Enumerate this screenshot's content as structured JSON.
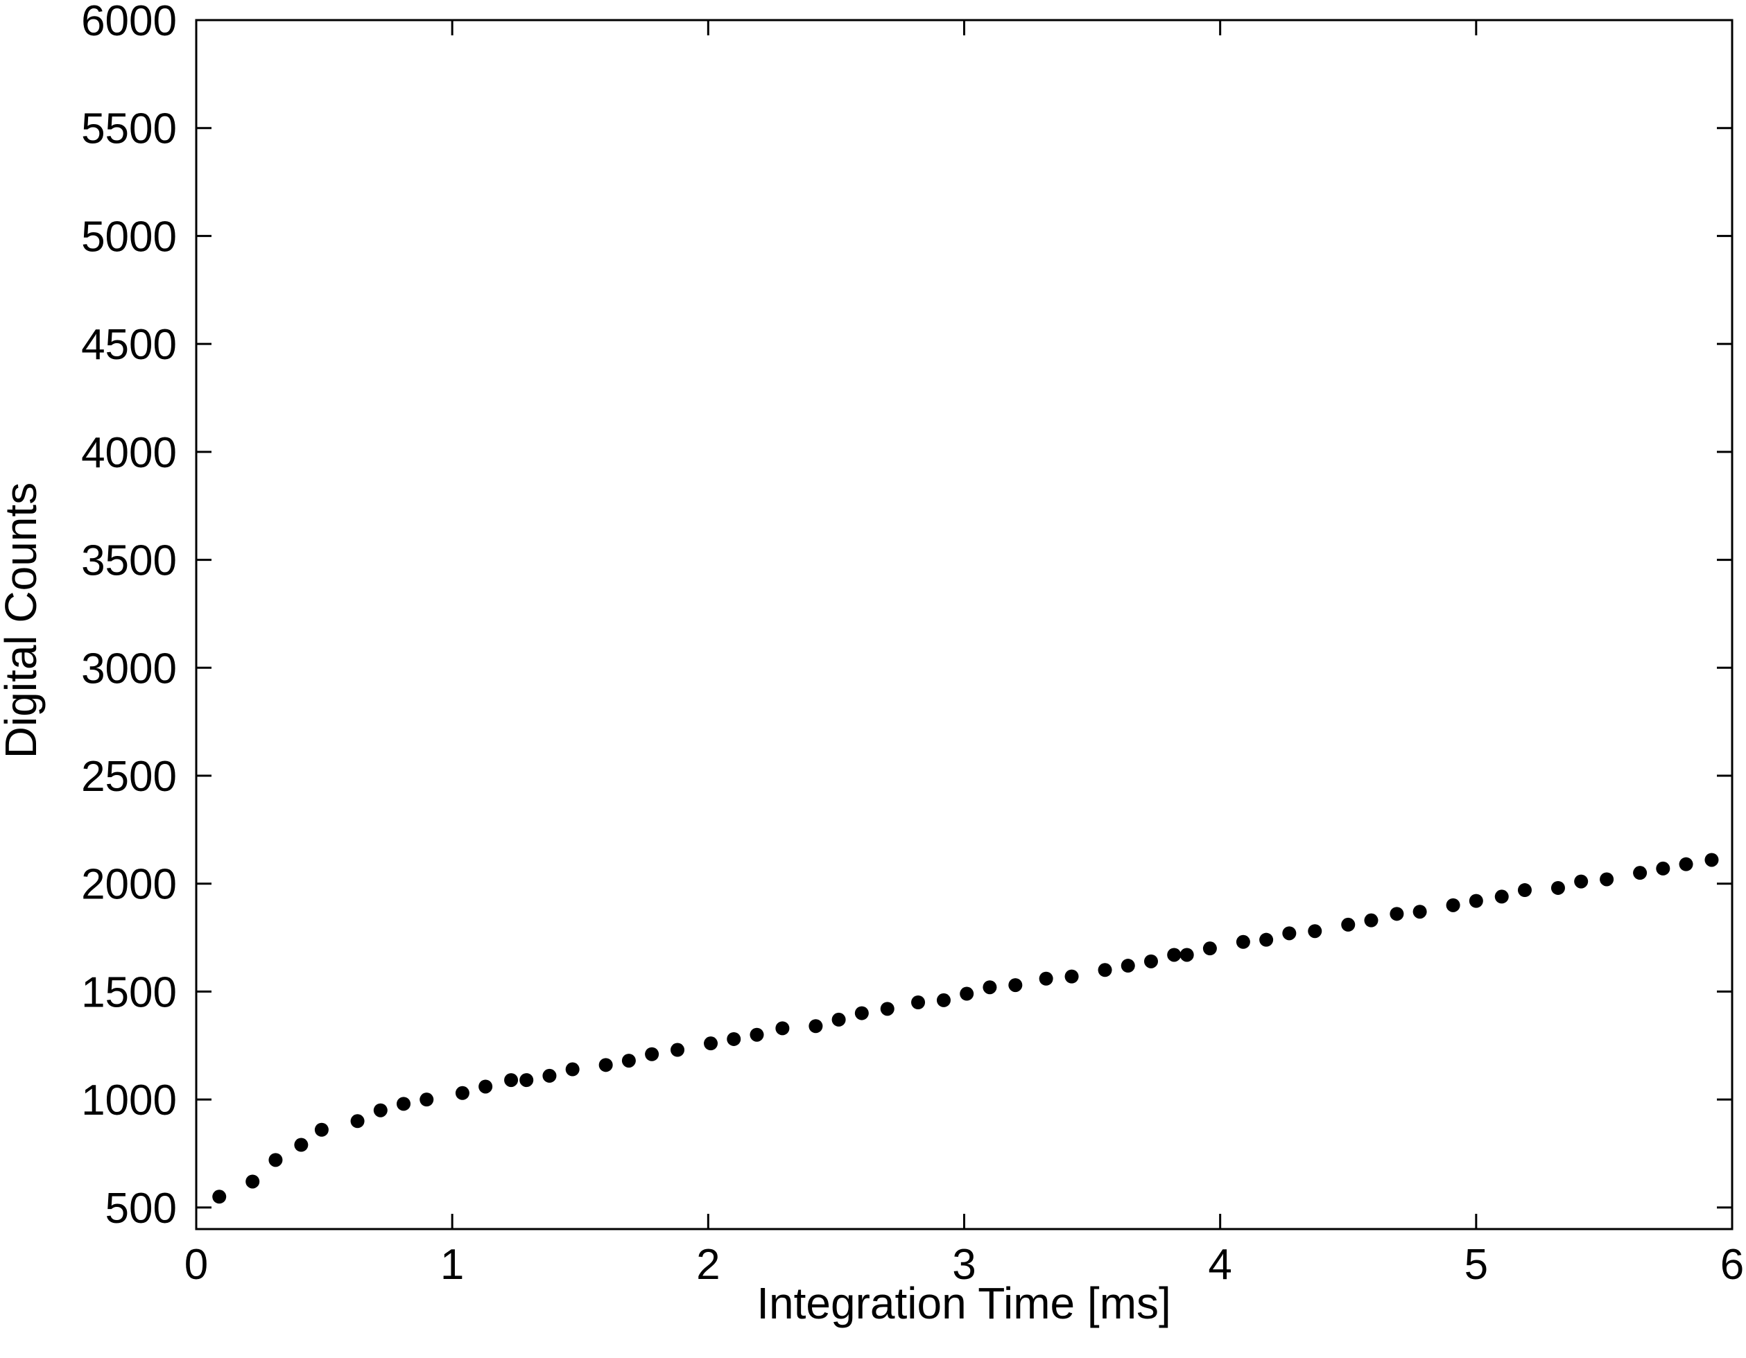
{
  "chart_data": {
    "type": "scatter",
    "title": "",
    "xlabel": "Integration Time [ms]",
    "ylabel": "Digital Counts",
    "xlim": [
      0,
      6
    ],
    "ylim": [
      400,
      6000
    ],
    "xticks": [
      "0",
      "1",
      "2",
      "3",
      "4",
      "5",
      "6"
    ],
    "yticks": [
      "500",
      "1000",
      "1500",
      "2000",
      "2500",
      "3000",
      "3500",
      "4000",
      "4500",
      "5000",
      "5500",
      "6000"
    ],
    "grid": false,
    "legend": "none",
    "marker_color": "#000000",
    "series": [
      {
        "x": [
          0.09,
          0.22,
          0.31,
          0.41,
          0.49,
          0.63,
          0.72,
          0.81,
          0.9,
          1.04,
          1.13,
          1.23,
          1.29,
          1.38,
          1.47,
          1.6,
          1.69,
          1.78,
          1.88,
          2.01,
          2.1,
          2.19,
          2.29,
          2.42,
          2.51,
          2.6,
          2.7,
          2.82,
          2.92,
          3.01,
          3.1,
          3.2,
          3.32,
          3.42,
          3.55,
          3.64,
          3.73,
          3.82,
          3.87,
          3.96,
          4.09,
          4.18,
          4.27,
          4.37,
          4.5,
          4.59,
          4.69,
          4.78,
          4.91,
          5.0,
          5.1,
          5.19,
          5.32,
          5.41,
          5.51,
          5.64,
          5.73,
          5.82,
          5.92
        ],
        "y": [
          550,
          620,
          720,
          790,
          860,
          900,
          950,
          980,
          1000,
          1030,
          1060,
          1090,
          1090,
          1110,
          1140,
          1160,
          1180,
          1210,
          1230,
          1260,
          1280,
          1300,
          1330,
          1340,
          1370,
          1400,
          1420,
          1450,
          1460,
          1490,
          1520,
          1530,
          1560,
          1570,
          1600,
          1620,
          1640,
          1670,
          1670,
          1700,
          1730,
          1740,
          1770,
          1780,
          1810,
          1830,
          1860,
          1870,
          1900,
          1920,
          1940,
          1970,
          1980,
          2010,
          2020,
          2050,
          2070,
          2090,
          2110
        ]
      }
    ]
  }
}
